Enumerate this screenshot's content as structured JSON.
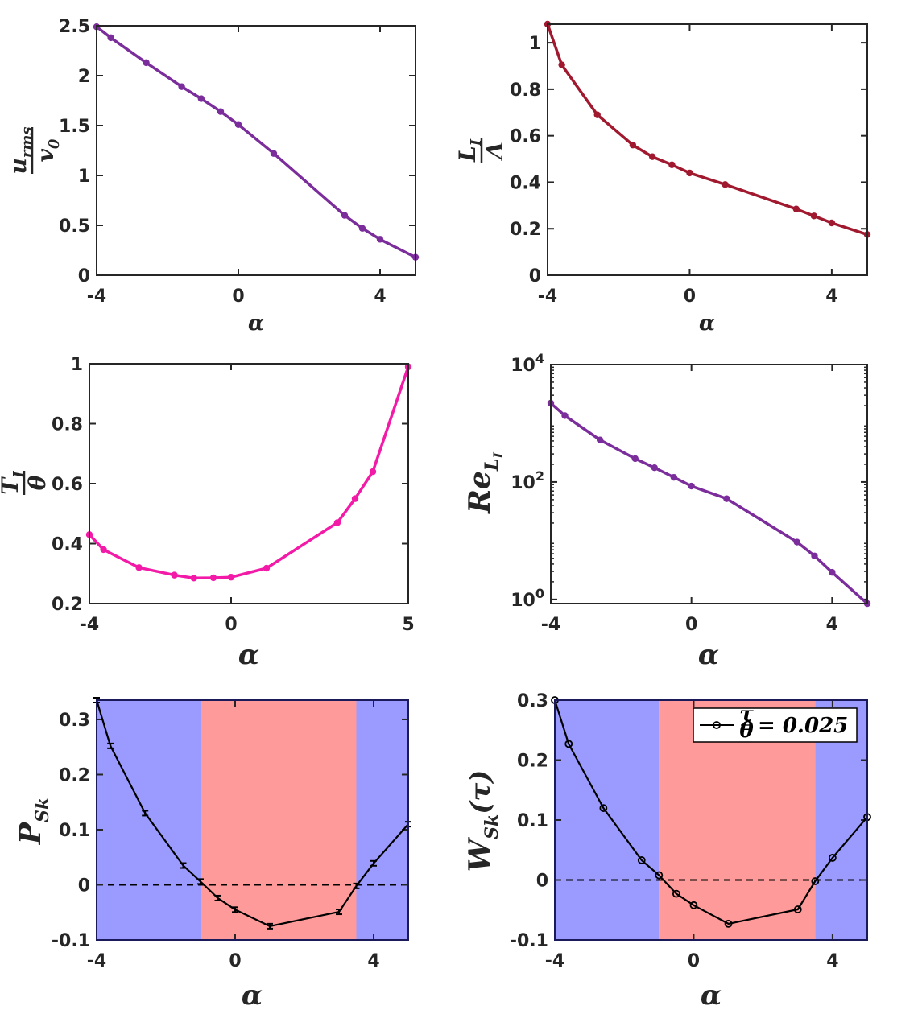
{
  "chart_data": [
    {
      "id": "a",
      "type": "line",
      "xlabel": "α",
      "ylabel": {
        "num": "u",
        "num_sub": "rms",
        "den": "v",
        "den_sub": "0"
      },
      "xlim": [
        -4,
        5
      ],
      "ylim": [
        0,
        2.5
      ],
      "xticks": [
        -4,
        0,
        4
      ],
      "xtick_labels": [
        "-4",
        "0",
        "4"
      ],
      "yticks": [
        0,
        0.5,
        1,
        1.5,
        2,
        2.5
      ],
      "ytick_labels": [
        "0",
        "0.5",
        "1",
        "1.5",
        "2",
        "2.5"
      ],
      "series": [
        {
          "name": "urms/v0",
          "color": "#7b2d9b",
          "x": [
            -4,
            -3.6,
            -2.6,
            -1.6,
            -1.05,
            -0.5,
            0,
            1,
            3,
            3.5,
            4,
            5
          ],
          "y": [
            2.49,
            2.38,
            2.13,
            1.89,
            1.77,
            1.64,
            1.51,
            1.22,
            0.6,
            0.47,
            0.36,
            0.18
          ]
        }
      ]
    },
    {
      "id": "b",
      "type": "line",
      "xlabel": "α",
      "ylabel": {
        "num": "L",
        "num_sub": "I",
        "den": "Λ",
        "den_sub": ""
      },
      "xlim": [
        -4,
        5
      ],
      "ylim": [
        0,
        1.08
      ],
      "xticks": [
        -4,
        0,
        4
      ],
      "xtick_labels": [
        "-4",
        "0",
        "4"
      ],
      "yticks": [
        0,
        0.2,
        0.4,
        0.6,
        0.8,
        1
      ],
      "ytick_labels": [
        "0",
        "0.2",
        "0.4",
        "0.6",
        "0.8",
        "1"
      ],
      "series": [
        {
          "name": "LI/Λ",
          "color": "#a0192e",
          "x": [
            -4,
            -3.6,
            -2.6,
            -1.6,
            -1.05,
            -0.5,
            0,
            1,
            3,
            3.5,
            4,
            5
          ],
          "y": [
            1.08,
            0.905,
            0.69,
            0.56,
            0.51,
            0.475,
            0.44,
            0.39,
            0.285,
            0.255,
            0.225,
            0.175
          ]
        }
      ]
    },
    {
      "id": "c",
      "type": "line",
      "xlabel": "α",
      "ylabel": {
        "num": "T",
        "num_sub": "I",
        "den": "θ",
        "den_sub": ""
      },
      "xlim": [
        -4,
        5
      ],
      "ylim": [
        0.2,
        1
      ],
      "xticks": [
        -4,
        0,
        5
      ],
      "xtick_labels": [
        "-4",
        "0",
        "5"
      ],
      "yticks": [
        0.2,
        0.4,
        0.6,
        0.8,
        1
      ],
      "ytick_labels": [
        "0.2",
        "0.4",
        "0.6",
        "0.8",
        "1"
      ],
      "series": [
        {
          "name": "TI/θ",
          "color": "#f31aa8",
          "x": [
            -4,
            -3.6,
            -2.6,
            -1.6,
            -1.05,
            -0.5,
            0,
            1,
            3,
            3.5,
            4,
            5
          ],
          "y": [
            0.43,
            0.38,
            0.32,
            0.295,
            0.285,
            0.286,
            0.288,
            0.318,
            0.47,
            0.55,
            0.64,
            0.99
          ]
        }
      ]
    },
    {
      "id": "d",
      "type": "line",
      "xlabel": "α",
      "ylabel": {
        "main": "Re",
        "sub": "L",
        "subsub": "I"
      },
      "yscale": "log",
      "xlim": [
        -4,
        5
      ],
      "ylim": [
        0.85,
        10000
      ],
      "xticks": [
        -4,
        0,
        4
      ],
      "xtick_labels": [
        "-4",
        "0",
        "4"
      ],
      "yticks": [
        1,
        100,
        10000
      ],
      "ytick_labels": [
        {
          "base": "10",
          "exp": "0"
        },
        {
          "base": "10",
          "exp": "2"
        },
        {
          "base": "10",
          "exp": "4"
        }
      ],
      "series": [
        {
          "name": "Re_LI",
          "color": "#7b2d9b",
          "x": [
            -4,
            -3.6,
            -2.6,
            -1.6,
            -1.05,
            -0.5,
            0,
            1,
            3,
            3.5,
            4,
            5
          ],
          "y": [
            2200,
            1350,
            520,
            250,
            175,
            120,
            85,
            52,
            9.5,
            5.5,
            2.9,
            0.85
          ]
        }
      ]
    },
    {
      "id": "e",
      "type": "line",
      "xlabel": "α",
      "ylabel": {
        "main": "P",
        "sub": "Sk"
      },
      "xlim": [
        -4,
        5
      ],
      "ylim": [
        -0.1,
        0.335
      ],
      "xticks": [
        -4,
        0,
        4
      ],
      "xtick_labels": [
        "-4",
        "0",
        "4"
      ],
      "yticks": [
        -0.1,
        0,
        0.1,
        0.2,
        0.3
      ],
      "ytick_labels": [
        "-0.1",
        "0",
        "0.1",
        "0.2",
        "0.3"
      ],
      "bands": [
        {
          "from": -4,
          "to": -1,
          "color": "#9a9aff"
        },
        {
          "from": -1,
          "to": 3.5,
          "color": "#ff9a9a"
        },
        {
          "from": 3.5,
          "to": 5,
          "color": "#9a9aff"
        }
      ],
      "zero_line": true,
      "marker": "errorbar",
      "series": [
        {
          "name": "P_Sk",
          "color": "#000000",
          "x": [
            -4,
            -3.6,
            -2.6,
            -1.5,
            -1,
            -0.5,
            0,
            1,
            3,
            3.5,
            4,
            5
          ],
          "y": [
            0.335,
            0.252,
            0.13,
            0.035,
            0.006,
            -0.024,
            -0.045,
            -0.075,
            -0.049,
            -0.002,
            0.039,
            0.11
          ]
        }
      ]
    },
    {
      "id": "f",
      "type": "line",
      "xlabel": "α",
      "ylabel": {
        "main": "W",
        "sub": "Sk",
        "arg": "(τ)"
      },
      "xlim": [
        -4,
        5
      ],
      "ylim": [
        -0.1,
        0.3
      ],
      "xticks": [
        -4,
        0,
        4
      ],
      "xtick_labels": [
        "-4",
        "0",
        "4"
      ],
      "yticks": [
        -0.1,
        0,
        0.1,
        0.2,
        0.3
      ],
      "ytick_labels": [
        "-0.1",
        "0",
        "0.1",
        "0.2",
        "0.3"
      ],
      "bands": [
        {
          "from": -4,
          "to": -1,
          "color": "#9a9aff"
        },
        {
          "from": -1,
          "to": 3.5,
          "color": "#ff9a9a"
        },
        {
          "from": 3.5,
          "to": 5,
          "color": "#9a9aff"
        }
      ],
      "zero_line": true,
      "marker": "circle",
      "legend": {
        "num": "τ",
        "den": "θ",
        "rest": "= 0.025",
        "position": "top-right"
      },
      "series": [
        {
          "name": "W_Sk(τ)",
          "color": "#000000",
          "x": [
            -4,
            -3.6,
            -2.6,
            -1.5,
            -1,
            -0.5,
            0,
            1,
            3,
            3.5,
            4,
            5
          ],
          "y": [
            0.3,
            0.227,
            0.12,
            0.033,
            0.008,
            -0.023,
            -0.042,
            -0.073,
            -0.049,
            -0.002,
            0.037,
            0.105
          ]
        }
      ]
    }
  ]
}
